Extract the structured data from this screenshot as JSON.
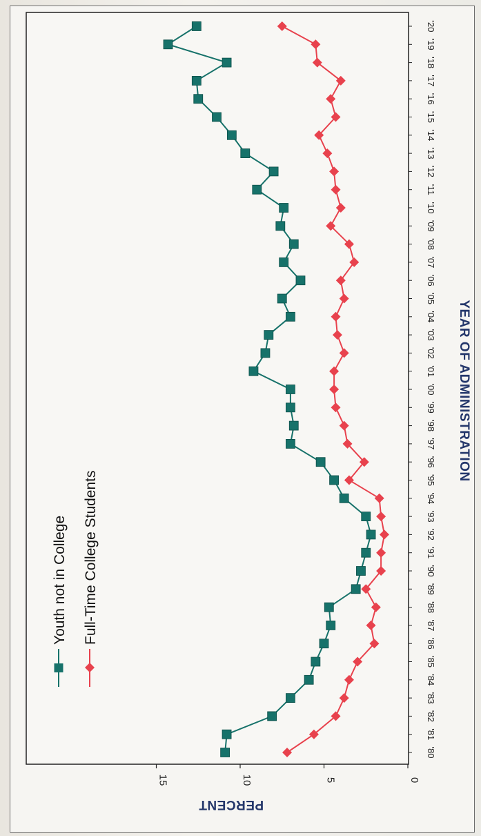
{
  "chart_data": {
    "type": "line",
    "xlabel": "YEAR OF ADMINISTRATION",
    "ylabel": "PERCENT",
    "ylim": [
      0,
      15
    ],
    "yticks": [
      "0",
      "5",
      "10",
      "15"
    ],
    "x": [
      "'80",
      "'81",
      "'82",
      "'83",
      "'84",
      "'85",
      "'86",
      "'87",
      "'88",
      "'89",
      "'90",
      "'91",
      "'92",
      "'93",
      "'94",
      "'95",
      "'96",
      "'97",
      "'98",
      "'99",
      "'00",
      "'01",
      "'02",
      "'03",
      "'04",
      "'05",
      "'06",
      "'07",
      "'08",
      "'09",
      "'10",
      "'11",
      "'12",
      "'13",
      "'14",
      "'15",
      "'16",
      "'17",
      "'18",
      "'19",
      "'20"
    ],
    "legend_position": "top-left",
    "grid": false,
    "series": [
      {
        "name": "Youth not in College",
        "color": "#17726a",
        "marker": "square",
        "values": [
          10.9,
          10.8,
          8.1,
          7.0,
          5.9,
          5.5,
          5.0,
          4.6,
          4.7,
          3.1,
          2.8,
          2.5,
          2.2,
          2.5,
          3.8,
          4.4,
          5.2,
          7.0,
          6.8,
          7.0,
          7.0,
          9.2,
          8.5,
          8.3,
          7.0,
          7.5,
          6.4,
          7.4,
          6.8,
          7.6,
          7.4,
          9.0,
          8.0,
          9.7,
          10.5,
          11.4,
          12.5,
          12.6,
          10.8,
          14.3,
          12.6
        ]
      },
      {
        "name": "Full-Time College Students",
        "color": "#e8424d",
        "marker": "diamond",
        "values": [
          7.2,
          5.6,
          4.3,
          3.8,
          3.5,
          3.0,
          2.0,
          2.2,
          1.9,
          2.5,
          1.6,
          1.6,
          1.4,
          1.6,
          1.7,
          3.5,
          2.6,
          3.6,
          3.8,
          4.3,
          4.4,
          4.4,
          3.8,
          4.2,
          4.3,
          3.8,
          4.0,
          3.2,
          3.5,
          4.6,
          4.0,
          4.3,
          4.4,
          4.8,
          5.3,
          4.3,
          4.6,
          4.0,
          5.4,
          5.5,
          7.5
        ]
      }
    ]
  }
}
